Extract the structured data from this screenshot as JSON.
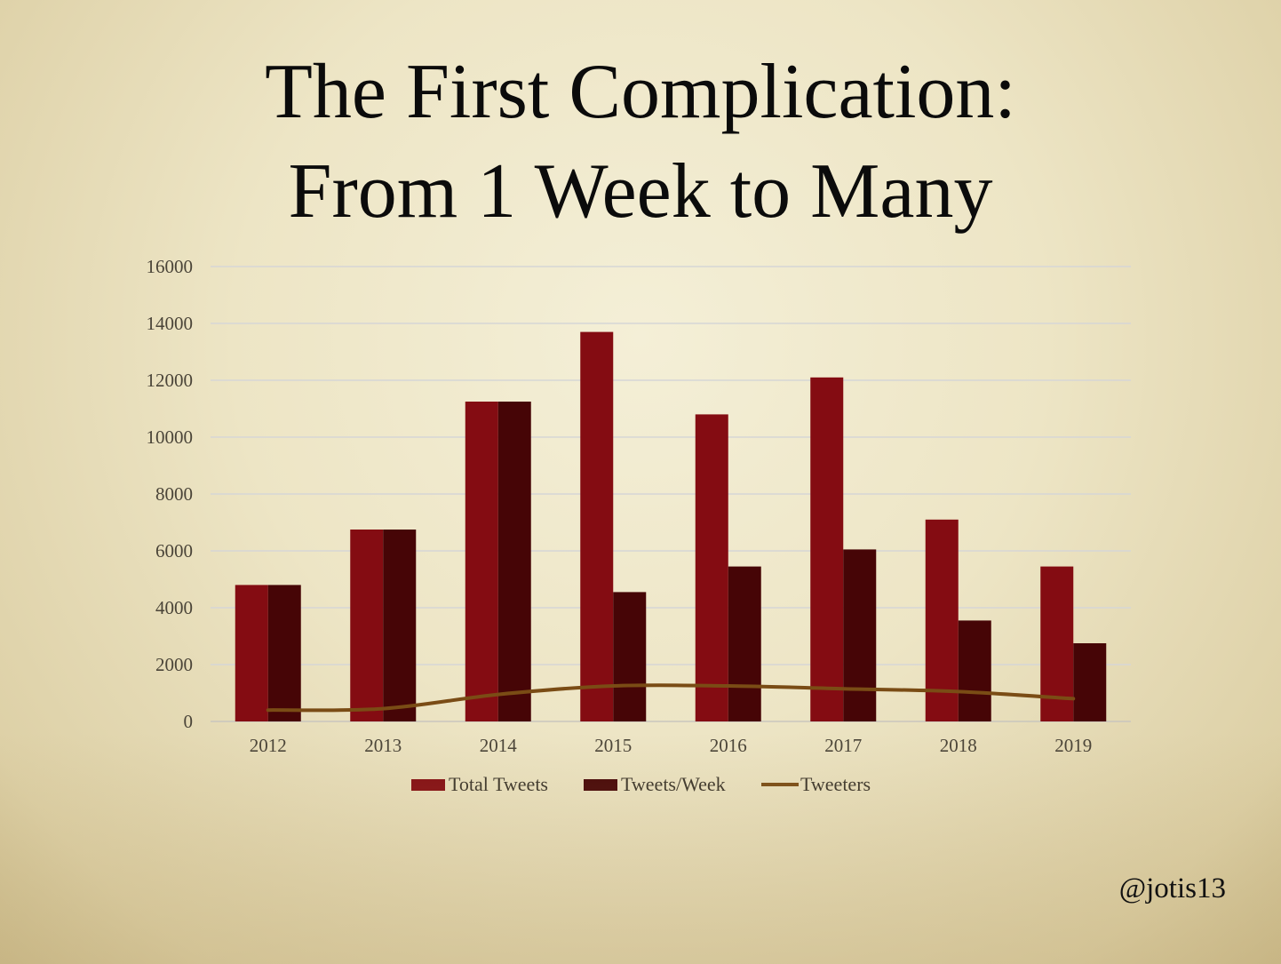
{
  "slide": {
    "title_line1": "The First Complication:",
    "title_line2": "From 1 Week to Many",
    "handle": "@jotis13"
  },
  "chart_data": {
    "type": "bar",
    "categories": [
      "2012",
      "2013",
      "2014",
      "2015",
      "2016",
      "2017",
      "2018",
      "2019"
    ],
    "series": [
      {
        "name": "Total Tweets",
        "kind": "bar",
        "color": "#840c12",
        "values": [
          4800,
          6750,
          11250,
          13700,
          10800,
          12100,
          7100,
          5450
        ]
      },
      {
        "name": "Tweets/Week",
        "kind": "bar",
        "color": "#460506",
        "values": [
          4800,
          6750,
          11250,
          4550,
          5450,
          6050,
          3550,
          2750
        ]
      },
      {
        "name": "Tweeters",
        "kind": "line",
        "color": "#7a4c15",
        "values": [
          400,
          450,
          950,
          1250,
          1250,
          1150,
          1050,
          800
        ]
      }
    ],
    "ylim": [
      0,
      16000
    ],
    "yticks": [
      "0",
      "2000",
      "4000",
      "6000",
      "8000",
      "10000",
      "12000",
      "14000",
      "16000"
    ],
    "grid": true,
    "legend_position": "bottom",
    "title": "",
    "xlabel": "",
    "ylabel": ""
  }
}
